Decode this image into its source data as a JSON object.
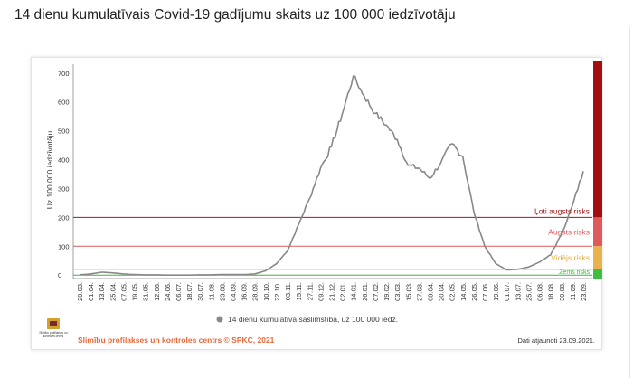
{
  "title": "14 dienu kumulatīvais Covid-19 gadījumu skaits uz 100 000 iedzīvotāju",
  "chart_data": {
    "type": "line",
    "ylabel": "Uz 100 000 iedzīvotāju",
    "ylim": [
      -15,
      740
    ],
    "yticks": [
      0,
      100,
      200,
      300,
      400,
      500,
      600,
      700
    ],
    "xticks": [
      "20.03.",
      "01.04.",
      "13.04.",
      "25.04.",
      "07.05.",
      "19.05.",
      "31.05.",
      "12.06.",
      "24.06.",
      "06.07.",
      "18.07.",
      "30.07.",
      "11.08.",
      "23.08.",
      "04.09.",
      "16.09.",
      "28.09.",
      "10.10.",
      "22.10.",
      "03.11.",
      "15.11.",
      "27.11.",
      "09.12.",
      "21.12.",
      "02.01.",
      "14.01.",
      "26.01.",
      "07.02.",
      "19.02.",
      "03.03.",
      "15.03.",
      "27.03.",
      "08.04.",
      "20.04.",
      "02.05.",
      "14.05.",
      "26.05.",
      "07.06.",
      "19.06.",
      "01.07.",
      "13.07.",
      "25.07.",
      "06.08.",
      "18.08.",
      "30.08.",
      "11.09.",
      "23.09."
    ],
    "series": [
      {
        "name": "14 dienu kumulatīvā saslimstība, uz 100 000 iedz.",
        "color": "#888888",
        "points": [
          [
            0,
            1
          ],
          [
            1,
            4
          ],
          [
            2,
            10
          ],
          [
            3,
            8
          ],
          [
            4,
            4
          ],
          [
            5,
            2
          ],
          [
            6,
            1
          ],
          [
            7,
            1
          ],
          [
            8,
            0
          ],
          [
            9,
            0
          ],
          [
            10,
            0
          ],
          [
            11,
            1
          ],
          [
            12,
            1
          ],
          [
            13,
            2
          ],
          [
            14,
            2
          ],
          [
            15,
            2
          ],
          [
            16,
            4
          ],
          [
            17,
            15
          ],
          [
            18,
            40
          ],
          [
            19,
            85
          ],
          [
            20,
            175
          ],
          [
            21,
            265
          ],
          [
            22,
            370
          ],
          [
            23,
            445
          ],
          [
            24,
            560
          ],
          [
            25,
            690
          ],
          [
            26,
            620
          ],
          [
            27,
            560
          ],
          [
            28,
            520
          ],
          [
            29,
            470
          ],
          [
            30,
            380
          ],
          [
            31,
            370
          ],
          [
            32,
            335
          ],
          [
            33,
            390
          ],
          [
            34,
            455
          ],
          [
            35,
            410
          ],
          [
            36,
            220
          ],
          [
            37,
            100
          ],
          [
            38,
            40
          ],
          [
            39,
            18
          ],
          [
            40,
            20
          ],
          [
            41,
            28
          ],
          [
            42,
            45
          ],
          [
            43,
            70
          ],
          [
            44,
            140
          ],
          [
            45,
            240
          ],
          [
            46,
            360
          ]
        ]
      }
    ],
    "thresholds": [
      {
        "label": "Ļoti augsts risks",
        "value": 200,
        "color": "#a01818"
      },
      {
        "label": "Augsts risks",
        "value": 100,
        "color": "#e05a5a"
      },
      {
        "label": "Vidējs risks",
        "value": 20,
        "color": "#e8b040"
      },
      {
        "label": "Zems risks",
        "value": 0,
        "color": "#3cb83c"
      }
    ],
    "risk_bar_colors": [
      "#a30f10",
      "#df5b5b",
      "#eab24c",
      "#3fbf3f"
    ],
    "legend": "bottom-center",
    "grid": false
  },
  "logo_text": [
    "Slimību profilakses un",
    "kontroles centrs"
  ],
  "footer": {
    "source": "Slimību profilakses un kontroles centrs © SPKC, 2021",
    "updated": "Dati atjaunoti 23.09.2021."
  }
}
